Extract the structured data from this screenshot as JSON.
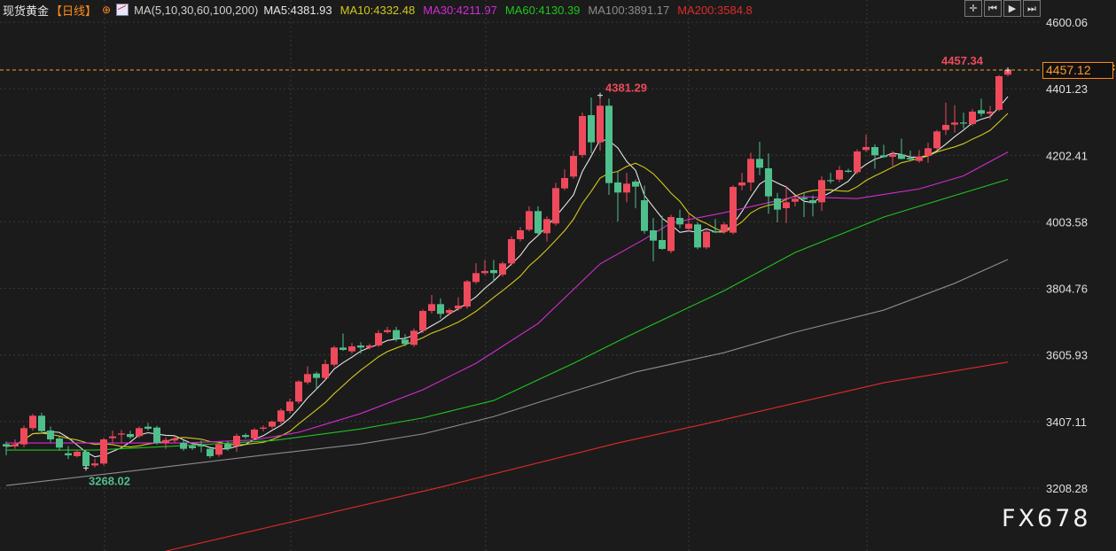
{
  "header": {
    "instrument": "现货黄金",
    "period": "【日线】",
    "ma_params": "MA(5,10,30,60,100,200)",
    "ma_labels": [
      {
        "text": "MA5:4381.93",
        "color": "#e6e6e6"
      },
      {
        "text": "MA10:4332.48",
        "color": "#d2c81c"
      },
      {
        "text": "MA30:4211.97",
        "color": "#d42bd4"
      },
      {
        "text": "MA60:4130.39",
        "color": "#1fc41f"
      },
      {
        "text": "MA100:3891.17",
        "color": "#8c8c8c"
      },
      {
        "text": "MA200:3584.8",
        "color": "#e02a2a"
      }
    ]
  },
  "toolbar": [
    {
      "icon": "crosshair-icon",
      "glyph": "✛"
    },
    {
      "icon": "jump-start-icon",
      "glyph": "⏮"
    },
    {
      "icon": "play-icon",
      "glyph": "▶"
    },
    {
      "icon": "jump-end-icon",
      "glyph": "⏭"
    }
  ],
  "price_tag": "4457.12",
  "watermark": "FX678",
  "colors": {
    "up": "#ee4a5c",
    "down": "#4fbf8c",
    "background": "#1b1b1b",
    "last_price_line": "#ff9a2a"
  },
  "chart_data": {
    "type": "candlestick",
    "ylim": [
      3135,
      4660
    ],
    "yticks": [
      "4600.06",
      "4401.23",
      "4202.41",
      "4003.58",
      "3804.76",
      "3605.93",
      "3407.11",
      "3208.28"
    ],
    "grid": true,
    "last_price": 4457.12,
    "annotations": [
      {
        "text": "4381.29",
        "index": 67,
        "value": 4381.29,
        "color": "#ee4a5c"
      },
      {
        "text": "3268.02",
        "index": 9,
        "value": 3268.02,
        "color": "#4fbf8c"
      },
      {
        "text": "4457.34",
        "index": 113,
        "value": 4457.34,
        "color": "#ee4a5c"
      }
    ],
    "ohlc": [
      [
        3339.7,
        3347.7,
        3306.2,
        3332.7
      ],
      [
        3332.7,
        3353.8,
        3325.6,
        3338.9
      ],
      [
        3338.9,
        3395,
        3330,
        3387.4
      ],
      [
        3387.4,
        3430,
        3380,
        3424.4
      ],
      [
        3424.4,
        3433.2,
        3372,
        3378.5
      ],
      [
        3380.3,
        3392,
        3345,
        3353.8
      ],
      [
        3356.5,
        3362,
        3320,
        3329.2
      ],
      [
        3312.4,
        3334,
        3294.8,
        3306.2
      ],
      [
        3303.6,
        3322,
        3300,
        3316.8
      ],
      [
        3316.8,
        3322,
        3268.02,
        3274
      ],
      [
        3276,
        3296,
        3270,
        3282
      ],
      [
        3281.5,
        3358,
        3276,
        3353.8
      ],
      [
        3357.4,
        3380,
        3343,
        3362.7
      ],
      [
        3368,
        3382,
        3344,
        3371.5
      ],
      [
        3369.7,
        3380,
        3355,
        3360.9
      ],
      [
        3363.5,
        3392,
        3358,
        3387.4
      ],
      [
        3391.8,
        3403,
        3380,
        3385.6
      ],
      [
        3389.1,
        3394,
        3338,
        3343.3
      ],
      [
        3343.3,
        3360,
        3325,
        3352.1
      ],
      [
        3350.3,
        3365,
        3344,
        3356.5
      ],
      [
        3343.3,
        3352,
        3320,
        3325.6
      ],
      [
        3334.4,
        3342,
        3322,
        3327.4
      ],
      [
        3336.2,
        3350,
        3315,
        3332.7
      ],
      [
        3325.6,
        3332,
        3298,
        3303.6
      ],
      [
        3308,
        3345,
        3302,
        3338.9
      ],
      [
        3338.9,
        3348,
        3320,
        3325.6
      ],
      [
        3334.4,
        3371,
        3316,
        3364.4
      ],
      [
        3366.9,
        3372,
        3356,
        3360.9
      ],
      [
        3356.5,
        3388,
        3352,
        3383.0
      ],
      [
        3385.6,
        3395,
        3378,
        3389.1
      ],
      [
        3391.8,
        3410,
        3386,
        3406.8
      ],
      [
        3406.8,
        3446,
        3400,
        3440.3
      ],
      [
        3438.5,
        3476,
        3432,
        3466.7
      ],
      [
        3466.7,
        3530,
        3460,
        3526.7
      ],
      [
        3524.1,
        3572,
        3518,
        3548.8
      ],
      [
        3550.5,
        3556,
        3503,
        3537.3
      ],
      [
        3537.3,
        3592,
        3532,
        3578.8
      ],
      [
        3577.0,
        3634,
        3570,
        3628.1
      ],
      [
        3628.1,
        3670,
        3618,
        3621.1
      ],
      [
        3616.7,
        3642,
        3610,
        3631.7
      ],
      [
        3634.3,
        3644,
        3610,
        3628.1
      ],
      [
        3628.1,
        3640,
        3622,
        3634.3
      ],
      [
        3634.3,
        3680,
        3630,
        3671.4
      ],
      [
        3674,
        3690,
        3670,
        3680.2
      ],
      [
        3680.2,
        3690,
        3646,
        3653.7
      ],
      [
        3652,
        3668,
        3632,
        3638.7
      ],
      [
        3636.1,
        3685,
        3630,
        3678.4
      ],
      [
        3678.4,
        3742,
        3672,
        3737.5
      ],
      [
        3737.5,
        3785,
        3730,
        3757.8
      ],
      [
        3757.8,
        3775,
        3715,
        3728.7
      ],
      [
        3731.3,
        3745,
        3725,
        3740.1
      ],
      [
        3744.5,
        3778,
        3738,
        3753.4
      ],
      [
        3750.7,
        3830,
        3744,
        3825.7
      ],
      [
        3823.9,
        3880,
        3818,
        3850.4
      ],
      [
        3850.4,
        3890,
        3845,
        3856.6
      ],
      [
        3859.2,
        3890,
        3825,
        3850.4
      ],
      [
        3846,
        3885,
        3840,
        3879.5
      ],
      [
        3879.5,
        3960,
        3873,
        3951.8
      ],
      [
        3951.8,
        3988,
        3945,
        3978.3
      ],
      [
        3980,
        4050,
        3975,
        4035.6
      ],
      [
        4035.6,
        4050,
        3960,
        3969.5
      ],
      [
        3969.5,
        4020,
        3945,
        4011.8
      ],
      [
        3998.6,
        4120,
        3992,
        4104.4
      ],
      [
        4103.5,
        4160,
        4098,
        4134.4
      ],
      [
        4138.8,
        4216,
        4132,
        4200.5
      ],
      [
        4203.2,
        4330,
        4196,
        4319.6
      ],
      [
        4322.3,
        4375,
        4208,
        4241.1
      ],
      [
        4241.1,
        4381.29,
        4216,
        4350.5
      ],
      [
        4350.5,
        4372,
        4084,
        4119.4
      ],
      [
        4121.2,
        4155,
        4004.7,
        4091.2
      ],
      [
        4091.2,
        4150,
        4062,
        4117.6
      ],
      [
        4123.8,
        4130,
        4044,
        4108.8
      ],
      [
        4068.2,
        4112,
        3968,
        3976.5
      ],
      [
        3978.3,
        4015,
        3885.7,
        3947.4
      ],
      [
        3949.2,
        4022,
        3920,
        3922.7
      ],
      [
        3916.5,
        4025,
        3910,
        4018
      ],
      [
        4015.3,
        4040,
        3985,
        3995.9
      ],
      [
        3982.7,
        4030,
        3975,
        3997.7
      ],
      [
        3995.9,
        4002,
        3922,
        3927.1
      ],
      [
        3927.1,
        3978,
        3922,
        3973.9
      ],
      [
        3975.6,
        4012,
        3970,
        3972.1
      ],
      [
        3973.9,
        4002,
        3968,
        3995.9
      ],
      [
        3971.2,
        4113,
        3966,
        4107.9
      ],
      [
        4112.3,
        4150,
        4098,
        4121.1
      ],
      [
        4121.1,
        4210,
        4096,
        4191.7
      ],
      [
        4191.7,
        4242.9,
        4143,
        4165.2
      ],
      [
        4163.5,
        4208,
        4028,
        4079.7
      ],
      [
        4073.5,
        4090,
        4002,
        4040
      ],
      [
        4044.4,
        4112,
        4000,
        4062.1
      ],
      [
        4063.8,
        4078,
        4050,
        4072.6
      ],
      [
        4075.3,
        4092,
        4018,
        4070.9
      ],
      [
        4068.2,
        4082,
        4020,
        4059.4
      ],
      [
        4062,
        4140,
        4036,
        4128.2
      ],
      [
        4128.2,
        4150,
        4118,
        4125.6
      ],
      [
        4130,
        4170,
        4122,
        4158.2
      ],
      [
        4156.4,
        4162,
        4150,
        4152.9
      ],
      [
        4152,
        4220,
        4146,
        4213.8
      ],
      [
        4218.2,
        4264,
        4212,
        4227
      ],
      [
        4227,
        4235,
        4162,
        4202.3
      ],
      [
        4202.3,
        4234,
        4195,
        4197
      ],
      [
        4197.9,
        4215,
        4170,
        4204.9
      ],
      [
        4204.9,
        4252,
        4190,
        4191.7
      ],
      [
        4194.4,
        4216,
        4184,
        4189.9
      ],
      [
        4185.5,
        4218,
        4180,
        4198.8
      ],
      [
        4200.5,
        4240,
        4180,
        4223.5
      ],
      [
        4223.5,
        4278,
        4218,
        4273.7
      ],
      [
        4278.1,
        4360,
        4263,
        4293.1
      ],
      [
        4294,
        4352,
        4270,
        4300.2
      ],
      [
        4300.2,
        4330,
        4282,
        4297.5
      ],
      [
        4295.8,
        4340,
        4290,
        4332.8
      ],
      [
        4337.2,
        4372,
        4318,
        4326.6
      ],
      [
        4326.6,
        4350,
        4310,
        4332.8
      ],
      [
        4338.1,
        4442,
        4334,
        4438.7
      ],
      [
        4443.1,
        4457.34,
        4438,
        4457.12
      ]
    ],
    "moving_averages": [
      {
        "name": "MA5",
        "period": 5,
        "color": "#e6e6e6"
      },
      {
        "name": "MA10",
        "period": 10,
        "color": "#d2c81c"
      },
      {
        "name": "MA30",
        "color": "#d42bd4",
        "points": [
          [
            0,
            3343
          ],
          [
            20,
            3343
          ],
          [
            28,
            3352
          ],
          [
            33,
            3375
          ],
          [
            40,
            3431
          ],
          [
            47,
            3502
          ],
          [
            53,
            3581
          ],
          [
            60,
            3700
          ],
          [
            67,
            3878
          ],
          [
            72,
            3952
          ],
          [
            75,
            4000
          ],
          [
            81,
            4031
          ],
          [
            89,
            4079
          ],
          [
            96,
            4073
          ],
          [
            103,
            4102
          ],
          [
            108,
            4141
          ],
          [
            113,
            4211.97
          ]
        ]
      },
      {
        "name": "MA60",
        "color": "#1fc41f",
        "points": [
          [
            0,
            3322
          ],
          [
            10,
            3322
          ],
          [
            20,
            3335
          ],
          [
            30,
            3350
          ],
          [
            40,
            3385
          ],
          [
            47,
            3418
          ],
          [
            55,
            3470
          ],
          [
            64,
            3581
          ],
          [
            70,
            3660
          ],
          [
            81,
            3798
          ],
          [
            89,
            3912
          ],
          [
            99,
            4018
          ],
          [
            113,
            4130.39
          ]
        ]
      },
      {
        "name": "MA100",
        "color": "#8c8c8c",
        "points": [
          [
            0,
            3216
          ],
          [
            15,
            3262
          ],
          [
            30,
            3310
          ],
          [
            40,
            3340
          ],
          [
            47,
            3370
          ],
          [
            55,
            3422
          ],
          [
            63,
            3489
          ],
          [
            71,
            3555
          ],
          [
            81,
            3613
          ],
          [
            89,
            3674
          ],
          [
            99,
            3740
          ],
          [
            107,
            3820
          ],
          [
            113,
            3891.17
          ]
        ]
      },
      {
        "name": "MA200",
        "color": "#e02a2a",
        "points": [
          [
            18,
            3020
          ],
          [
            49,
            3211
          ],
          [
            69,
            3343
          ],
          [
            79,
            3401
          ],
          [
            99,
            3523
          ],
          [
            113,
            3584.8
          ]
        ]
      }
    ]
  }
}
